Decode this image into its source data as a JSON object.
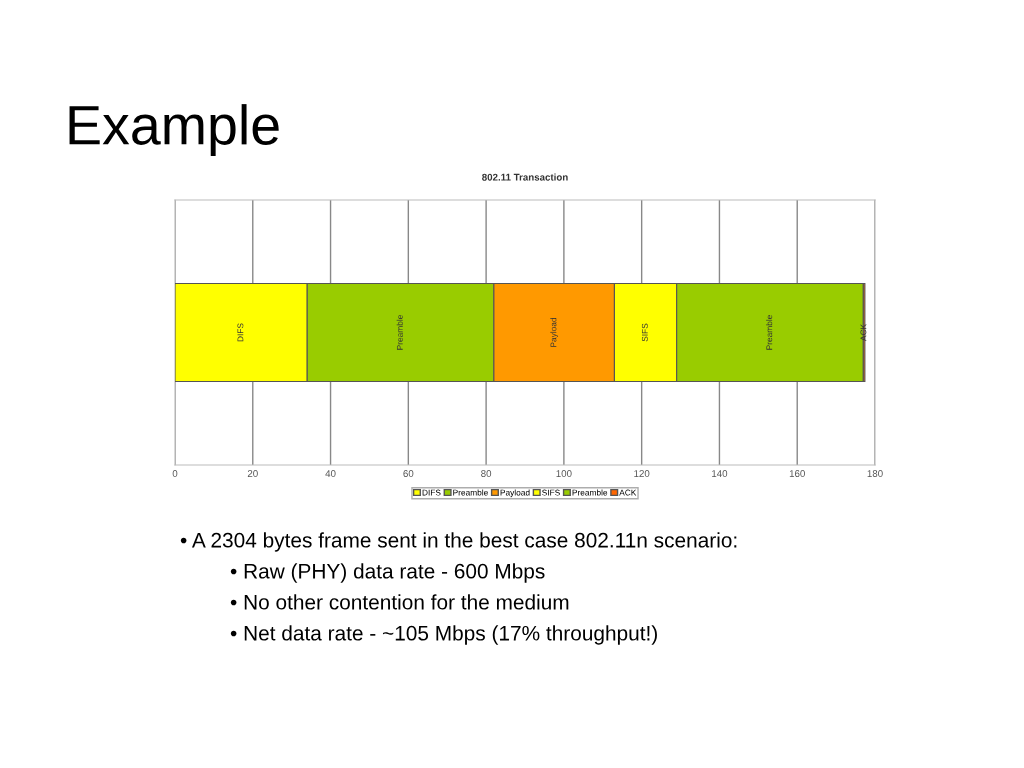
{
  "chart_data": {
    "type": "bar",
    "orientation": "horizontal",
    "stacked": true,
    "title": "802.11 Transaction",
    "categories": [
      null
    ],
    "series": [
      {
        "name": "DIFS",
        "color": "#ffff00",
        "values": [
          34
        ]
      },
      {
        "name": "Preamble",
        "color": "#99cc00",
        "values": [
          48
        ]
      },
      {
        "name": "Payload",
        "color": "#ff9900",
        "values": [
          31
        ]
      },
      {
        "name": "SIFS",
        "color": "#ffff00",
        "values": [
          16
        ]
      },
      {
        "name": "Preamble",
        "color": "#99cc00",
        "values": [
          48
        ]
      },
      {
        "name": "ACK",
        "color": "#ff6600",
        "values": [
          0.4
        ]
      }
    ],
    "xlim": [
      0,
      180
    ],
    "xticks": [
      0,
      20,
      40,
      60,
      80,
      100,
      120,
      140,
      160,
      180
    ],
    "grid": "x",
    "legend": "bottom",
    "tick_labels": "x",
    "annotations": [
      "Example",
      "• A 2304 bytes frame sent in the best case 802.11n scenario:",
      "• Raw (PHY) data rate - 600 Mbps",
      "• No other contention for the medium",
      "• Net data rate - ~105 Mbps (17% throughput!)"
    ]
  }
}
